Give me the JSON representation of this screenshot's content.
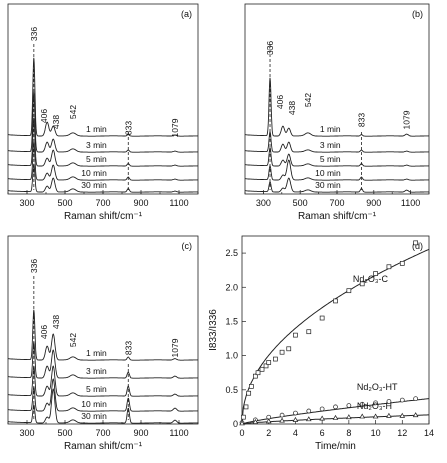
{
  "chart_data": [
    {
      "type": "line",
      "panel_label": "(a)",
      "xlabel": "Raman shift/cm⁻¹",
      "xlim": [
        200,
        1200
      ],
      "xticks": [
        300,
        500,
        700,
        900,
        1100
      ],
      "peaks": [
        "336",
        "406",
        "438",
        "542",
        "833",
        "1079"
      ],
      "series": [
        {
          "name": "1 min"
        },
        {
          "name": "3 min"
        },
        {
          "name": "5 min"
        },
        {
          "name": "10 min"
        },
        {
          "name": "30 min"
        }
      ]
    },
    {
      "type": "line",
      "panel_label": "(b)",
      "xlabel": "Raman shift/cm⁻¹",
      "xlim": [
        200,
        1200
      ],
      "xticks": [
        300,
        500,
        700,
        900,
        1100
      ],
      "peaks": [
        "336",
        "406",
        "438",
        "542",
        "833",
        "1079"
      ],
      "series": [
        {
          "name": "1 min"
        },
        {
          "name": "3 min"
        },
        {
          "name": "5 min"
        },
        {
          "name": "10 min"
        },
        {
          "name": "30 min"
        }
      ]
    },
    {
      "type": "line",
      "panel_label": "(c)",
      "xlabel": "Raman shift/cm⁻¹",
      "xlim": [
        200,
        1200
      ],
      "xticks": [
        300,
        500,
        700,
        900,
        1100
      ],
      "peaks": [
        "336",
        "406",
        "438",
        "542",
        "833",
        "1079"
      ],
      "series": [
        {
          "name": "1 min"
        },
        {
          "name": "3 min"
        },
        {
          "name": "5 min"
        },
        {
          "name": "10 min"
        },
        {
          "name": "30 min"
        }
      ]
    },
    {
      "type": "scatter",
      "panel_label": "(d)",
      "xlabel": "Time/min",
      "ylabel": "I833/I336",
      "xlim": [
        0,
        14
      ],
      "ylim": [
        0,
        2.75
      ],
      "xticks": [
        0,
        2,
        4,
        6,
        8,
        10,
        12,
        14
      ],
      "yticks": [
        "0",
        "0.5",
        "1.0",
        "1.5",
        "2.0",
        "2.5"
      ],
      "series": [
        {
          "name": "Nd2O3-C",
          "marker": "square",
          "x": [
            0.1,
            0.3,
            0.5,
            0.7,
            1,
            1.2,
            1.5,
            1.8,
            2,
            2.5,
            3,
            3.5,
            4,
            5,
            6,
            7,
            8,
            9,
            10,
            11,
            12,
            13
          ],
          "y": [
            0.1,
            0.25,
            0.45,
            0.55,
            0.7,
            0.75,
            0.8,
            0.85,
            0.9,
            0.95,
            1.05,
            1.1,
            1.3,
            1.35,
            1.55,
            1.8,
            1.95,
            2.05,
            2.2,
            2.3,
            2.35,
            2.65
          ]
        },
        {
          "name": "Nd2O3-HT",
          "marker": "circle",
          "x": [
            0,
            1,
            2,
            3,
            4,
            5,
            6,
            7,
            8,
            9,
            10,
            11,
            12,
            13
          ],
          "y": [
            0.02,
            0.06,
            0.1,
            0.13,
            0.16,
            0.19,
            0.22,
            0.25,
            0.27,
            0.29,
            0.31,
            0.33,
            0.35,
            0.37
          ]
        },
        {
          "name": "Nd2O3-H",
          "marker": "triangle",
          "x": [
            0,
            1,
            2,
            3,
            4,
            5,
            6,
            7,
            8,
            9,
            10,
            11,
            12,
            13
          ],
          "y": [
            0.01,
            0.03,
            0.04,
            0.05,
            0.06,
            0.07,
            0.08,
            0.09,
            0.1,
            0.11,
            0.11,
            0.12,
            0.12,
            0.13
          ]
        }
      ]
    }
  ]
}
